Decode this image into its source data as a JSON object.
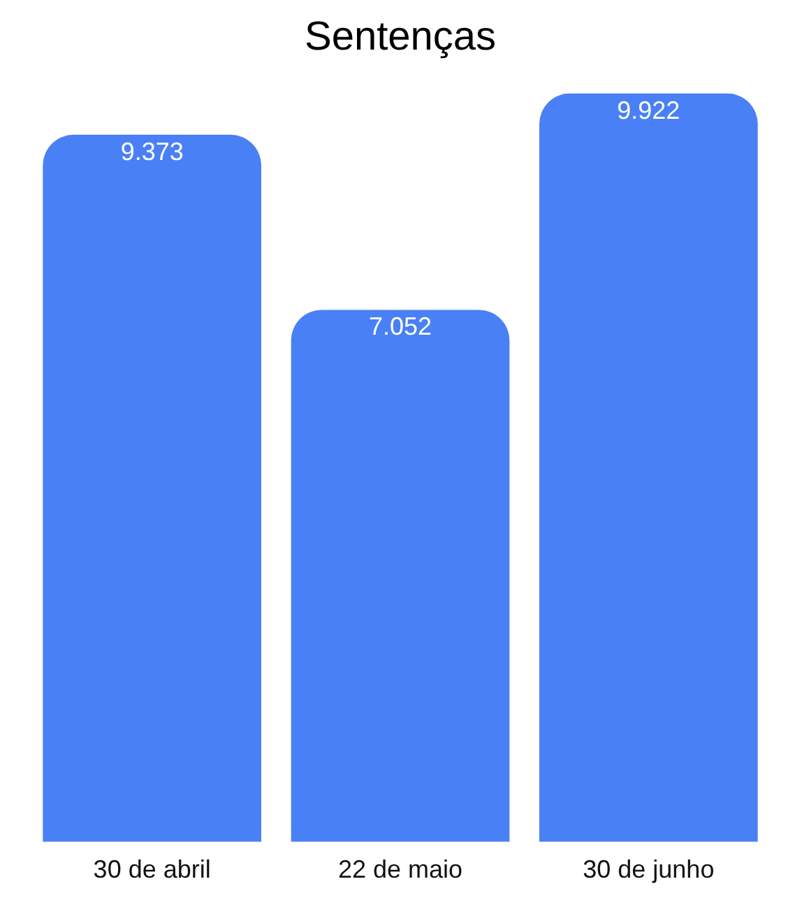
{
  "chart_data": {
    "type": "bar",
    "title": "Sentenças",
    "categories": [
      "30 de abril",
      "22 de maio",
      "30 de junho"
    ],
    "values": [
      9373,
      7052,
      9922
    ],
    "value_labels": [
      "9.373",
      "7.052",
      "9.922"
    ],
    "color": "#4a80f5",
    "legend": false,
    "grid": false
  }
}
